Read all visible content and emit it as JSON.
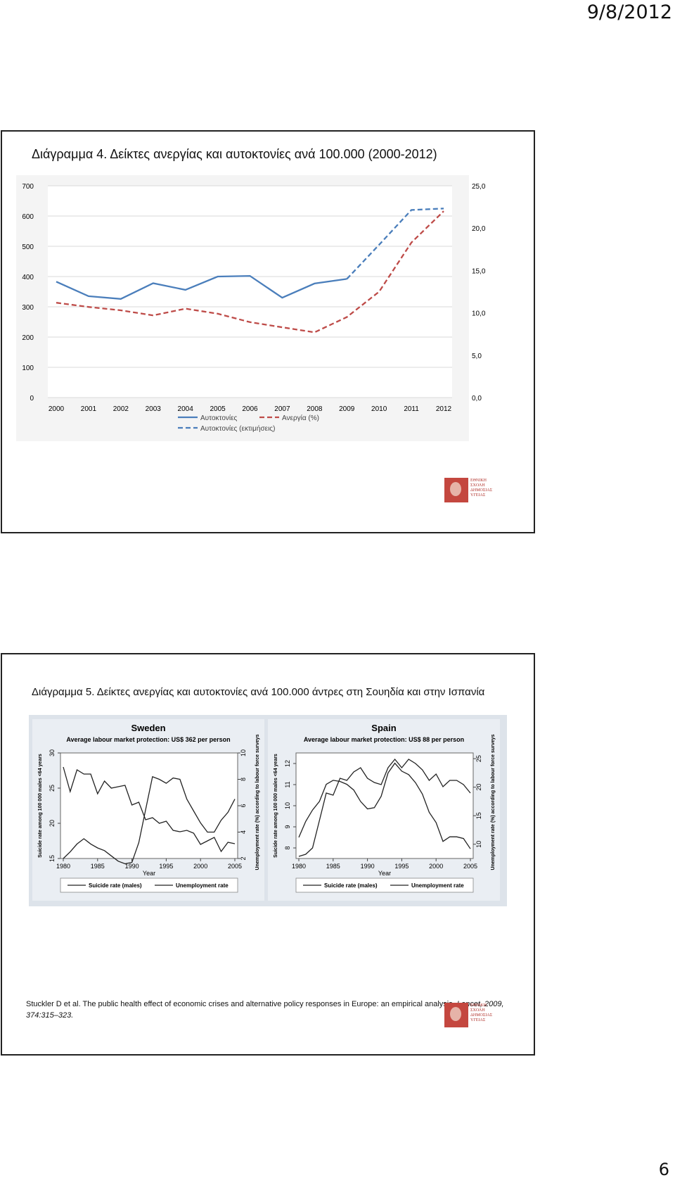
{
  "header": {
    "date": "9/8/2012"
  },
  "slide1": {
    "title": "Διάγραμμα 4. Δείκτες ανεργίας και αυτοκτονίες ανά 100.000 (2000-2012)",
    "logo_text": "ΕΘΝΙΚΗ ΣΧΟΛΗ ΔΗΜΟΣΙΑΣ ΥΓΕΙΑΣ"
  },
  "slide2": {
    "title": "Διάγραμμα 5. Δείκτες ανεργίας και αυτοκτονίες ανά 100.000 άντρες στη Σουηδία και στην Ισπανία",
    "citation_text": "Stuckler D et al. The public health effect of economic crises and alternative policy responses in Europe: an empirical analysis.",
    "citation_journal": "Lancet, 2009,",
    "citation_pages": "374:315–323.",
    "logo_text": "ΕΘΝΙΚΗ ΣΧΟΛΗ ΔΗΜΟΣΙΑΣ ΥΓΕΙΑΣ"
  },
  "footer": {
    "page_number": "6"
  },
  "chart_data": [
    {
      "type": "line",
      "title": "",
      "x": [
        "2000",
        "2001",
        "2002",
        "2003",
        "2004",
        "2005",
        "2006",
        "2007",
        "2008",
        "2009",
        "2010",
        "2011",
        "2012"
      ],
      "left_ticks": [
        "0",
        "100",
        "200",
        "300",
        "400",
        "500",
        "600",
        "700"
      ],
      "right_ticks": [
        "0,0",
        "5,0",
        "10,0",
        "15,0",
        "20,0",
        "25,0"
      ],
      "ylim_left": [
        0,
        700
      ],
      "ylim_right": [
        0,
        25
      ],
      "series": [
        {
          "name": "Αυτοκτονίες",
          "axis": "left",
          "style": "solid",
          "color": "#4a7ebb",
          "values": [
            383,
            335,
            326,
            378,
            356,
            400,
            402,
            330,
            377,
            392,
            null,
            null,
            null
          ]
        },
        {
          "name": "Αυτοκτονίες (εκτιμήσεις)",
          "axis": "left",
          "style": "dashed",
          "color": "#4a7ebb",
          "values": [
            null,
            null,
            null,
            null,
            null,
            null,
            null,
            null,
            null,
            392,
            505,
            620,
            625
          ]
        },
        {
          "name": "Ανεργία (%)",
          "axis": "right",
          "style": "dashed",
          "color": "#be4b48",
          "values": [
            11.2,
            10.7,
            10.3,
            9.7,
            10.5,
            9.9,
            8.9,
            8.3,
            7.7,
            9.5,
            12.5,
            18.3,
            22.0
          ]
        }
      ],
      "legend_position": "bottom"
    },
    {
      "type": "line",
      "title": "Sweden",
      "subtitle": "Average labour market protection: US$ 362 per person",
      "xlabel": "Year",
      "ylabel_left": "Suicide rate among 100 000 males <64 years",
      "ylabel_right": "Unemployment rate (%) according to labour force surveys",
      "x_ticks": [
        "1980",
        "1985",
        "1990",
        "1995",
        "2000",
        "2005"
      ],
      "left_ticks": [
        "15",
        "20",
        "25",
        "30"
      ],
      "right_ticks": [
        "2",
        "4",
        "6",
        "8",
        "10"
      ],
      "ylim_left": [
        15,
        30
      ],
      "ylim_right": [
        2,
        10
      ],
      "x": [
        1980,
        1981,
        1982,
        1983,
        1984,
        1985,
        1986,
        1987,
        1988,
        1989,
        1990,
        1991,
        1992,
        1993,
        1994,
        1995,
        1996,
        1997,
        1998,
        1999,
        2000,
        2001,
        2002,
        2003,
        2004,
        2005
      ],
      "series": [
        {
          "name": "Suicide rate (males)",
          "axis": "left",
          "style": "solid",
          "color": "#222",
          "values": [
            28.0,
            24.5,
            27.6,
            27.0,
            27.0,
            24.2,
            26.0,
            25.0,
            25.2,
            25.4,
            22.6,
            23.0,
            20.5,
            20.8,
            20.0,
            20.3,
            19.0,
            18.8,
            19.0,
            18.6,
            17.0,
            17.5,
            18.0,
            16.0,
            17.3,
            17.1
          ]
        },
        {
          "name": "Unemployment rate",
          "axis": "right",
          "style": "solid",
          "color": "#222",
          "values": [
            2.0,
            2.5,
            3.1,
            3.5,
            3.1,
            2.8,
            2.6,
            2.2,
            1.8,
            1.6,
            1.7,
            3.2,
            5.7,
            8.2,
            8.0,
            7.7,
            8.1,
            8.0,
            6.5,
            5.6,
            4.7,
            4.0,
            4.0,
            4.9,
            5.5,
            6.5
          ]
        }
      ],
      "legend_position": "bottom"
    },
    {
      "type": "line",
      "title": "Spain",
      "subtitle": "Average labour market protection: US$ 88 per person",
      "xlabel": "Year",
      "ylabel_left": "Suicide rate among 100 000 males <64 years",
      "ylabel_right": "Unemployment rate (%) according to labour force surveys",
      "x_ticks": [
        "1980",
        "1985",
        "1990",
        "1995",
        "2000",
        "2005"
      ],
      "left_ticks": [
        "8",
        "9",
        "10",
        "11",
        "12"
      ],
      "right_ticks": [
        "10",
        "15",
        "20",
        "25"
      ],
      "ylim_left": [
        7.5,
        12.5
      ],
      "ylim_right": [
        7.5,
        26
      ],
      "x": [
        1980,
        1981,
        1982,
        1983,
        1984,
        1985,
        1986,
        1987,
        1988,
        1989,
        1990,
        1991,
        1992,
        1993,
        1994,
        1995,
        1996,
        1997,
        1998,
        1999,
        2000,
        2001,
        2002,
        2003,
        2004,
        2005
      ],
      "series": [
        {
          "name": "Suicide rate (males)",
          "axis": "left",
          "style": "solid",
          "color": "#222",
          "values": [
            7.6,
            7.7,
            8.0,
            9.3,
            10.6,
            10.5,
            11.3,
            11.2,
            11.6,
            11.8,
            11.3,
            11.1,
            11.0,
            11.8,
            12.2,
            11.8,
            12.2,
            12.0,
            11.7,
            11.2,
            11.5,
            10.9,
            11.2,
            11.2,
            11.0,
            10.6
          ]
        },
        {
          "name": "Unemployment rate",
          "axis": "right",
          "style": "solid",
          "color": "#222",
          "values": [
            11.2,
            14.0,
            16.0,
            17.5,
            20.5,
            21.2,
            21.0,
            20.5,
            19.5,
            17.5,
            16.2,
            16.4,
            18.4,
            22.5,
            24.2,
            22.8,
            22.2,
            20.8,
            18.8,
            15.6,
            13.8,
            10.5,
            11.3,
            11.3,
            11.0,
            9.2
          ]
        }
      ],
      "legend_position": "bottom"
    }
  ]
}
